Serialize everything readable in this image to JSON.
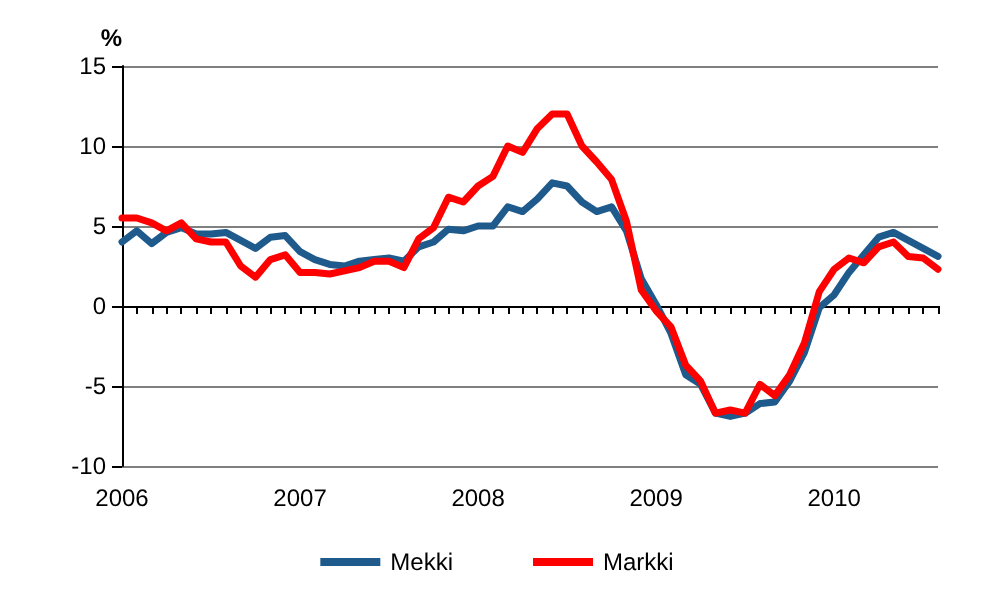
{
  "chart_data": {
    "type": "line",
    "ylabel": "%",
    "categories": [
      "2006",
      null,
      null,
      null,
      null,
      null,
      null,
      null,
      null,
      null,
      null,
      null,
      "2007",
      null,
      null,
      null,
      null,
      null,
      null,
      null,
      null,
      null,
      null,
      null,
      "2008",
      null,
      null,
      null,
      null,
      null,
      null,
      null,
      null,
      null,
      null,
      null,
      "2009",
      null,
      null,
      null,
      null,
      null,
      null,
      null,
      null,
      null,
      null,
      null,
      "2010",
      null,
      null,
      null,
      null,
      null,
      null,
      null
    ],
    "series": [
      {
        "name": "Mekki",
        "color": "#1f5a8c",
        "values": [
          4.0,
          4.7,
          3.9,
          4.6,
          4.9,
          4.5,
          4.5,
          4.6,
          4.1,
          3.6,
          4.3,
          4.4,
          3.4,
          2.9,
          2.6,
          2.5,
          2.8,
          2.9,
          3.0,
          2.8,
          3.7,
          4.0,
          4.8,
          4.7,
          5.0,
          5.0,
          6.2,
          5.9,
          6.7,
          7.7,
          7.5,
          6.5,
          5.9,
          6.2,
          4.7,
          1.7,
          0.1,
          -1.7,
          -4.3,
          -4.9,
          -6.7,
          -6.9,
          -6.7,
          -6.1,
          -6.0,
          -4.7,
          -2.9,
          -0.1,
          0.7,
          2.1,
          3.2,
          4.3,
          4.6,
          4.1,
          3.6,
          3.1
        ]
      },
      {
        "name": "Markki",
        "color": "#ff0000",
        "values": [
          5.5,
          5.5,
          5.2,
          4.7,
          5.2,
          4.2,
          4.0,
          4.0,
          2.5,
          1.8,
          2.9,
          3.2,
          2.1,
          2.1,
          2.0,
          2.2,
          2.4,
          2.8,
          2.8,
          2.4,
          4.2,
          4.9,
          6.8,
          6.5,
          7.5,
          8.1,
          10.0,
          9.6,
          11.1,
          12.0,
          12.0,
          10.0,
          9.0,
          7.9,
          5.3,
          1.0,
          -0.3,
          -1.3,
          -3.7,
          -4.7,
          -6.7,
          -6.5,
          -6.7,
          -4.9,
          -5.6,
          -4.3,
          -2.3,
          0.9,
          2.3,
          3.0,
          2.7,
          3.7,
          4.0,
          3.1,
          3.0,
          2.3
        ]
      }
    ],
    "ylim": [
      -10,
      15
    ],
    "yticks": [
      -10,
      -5,
      0,
      5,
      10,
      15
    ],
    "grid": "y",
    "legend": "bottom",
    "marker": "none",
    "line_style": "solid"
  }
}
